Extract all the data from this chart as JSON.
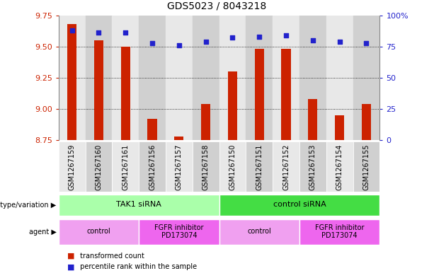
{
  "title": "GDS5023 / 8043218",
  "samples": [
    "GSM1267159",
    "GSM1267160",
    "GSM1267161",
    "GSM1267156",
    "GSM1267157",
    "GSM1267158",
    "GSM1267150",
    "GSM1267151",
    "GSM1267152",
    "GSM1267153",
    "GSM1267154",
    "GSM1267155"
  ],
  "transformed_count": [
    9.68,
    9.55,
    9.5,
    8.92,
    8.78,
    9.04,
    9.3,
    9.48,
    9.48,
    9.08,
    8.95,
    9.04
  ],
  "percentile_rank": [
    88,
    86,
    86,
    78,
    76,
    79,
    82,
    83,
    84,
    80,
    79,
    78
  ],
  "ylim_left": [
    8.75,
    9.75
  ],
  "ylim_right": [
    0,
    100
  ],
  "yticks_left": [
    8.75,
    9.0,
    9.25,
    9.5,
    9.75
  ],
  "yticks_right": [
    0,
    25,
    50,
    75,
    100
  ],
  "ytick_labels_right": [
    "0",
    "25",
    "50",
    "75",
    "100%"
  ],
  "bar_color": "#cc2200",
  "dot_color": "#2222cc",
  "column_bg_even": "#e8e8e8",
  "column_bg_odd": "#d0d0d0",
  "genotype_colors": [
    "#aaffaa",
    "#44dd44"
  ],
  "agent_colors_light": "#f0a0f0",
  "agent_colors_dark": "#ee66ee",
  "genotype_groups": [
    {
      "label": "TAK1 siRNA",
      "start": 0,
      "end": 6,
      "color_idx": 0
    },
    {
      "label": "control siRNA",
      "start": 6,
      "end": 12,
      "color_idx": 1
    }
  ],
  "agent_groups": [
    {
      "label": "control",
      "start": 0,
      "end": 3,
      "dark": false
    },
    {
      "label": "FGFR inhibitor\nPD173074",
      "start": 3,
      "end": 6,
      "dark": true
    },
    {
      "label": "control",
      "start": 6,
      "end": 9,
      "dark": false
    },
    {
      "label": "FGFR inhibitor\nPD173074",
      "start": 9,
      "end": 12,
      "dark": true
    }
  ]
}
